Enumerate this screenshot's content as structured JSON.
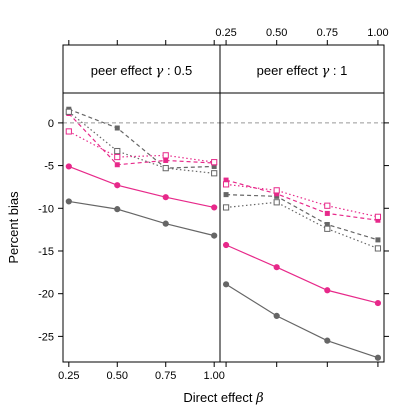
{
  "chart_data": {
    "type": "line",
    "xlabel_text": "Direct effect",
    "xlabel_symbol": "β",
    "ylabel": "Percent bias",
    "x": [
      0.25,
      0.5,
      0.75,
      1.0
    ],
    "x_tick_labels": [
      "0.25",
      "0.50",
      "0.75",
      "1.00"
    ],
    "y_ticks": [
      0,
      -5,
      -10,
      -15,
      -20,
      -25
    ],
    "y_tick_labels": [
      "0",
      "-5",
      "-10",
      "-15",
      "-20",
      "-25"
    ],
    "ylim": [
      -28,
      3.5
    ],
    "xlim": [
      0.22,
      1.03
    ],
    "reference_line": 0,
    "colors": {
      "pink": "#e7298a",
      "gray": "#666666"
    },
    "panels": [
      {
        "strip_text": "peer effect",
        "strip_symbol": "γ",
        "strip_suffix": " : 0.5",
        "series": [
          {
            "color": "gray",
            "linestyle": "solid",
            "marker": "filled-circle",
            "values": [
              -9.2,
              -10.1,
              -11.8,
              -13.2
            ]
          },
          {
            "color": "pink",
            "linestyle": "solid",
            "marker": "filled-circle",
            "values": [
              -5.1,
              -7.3,
              -8.7,
              -9.9
            ]
          },
          {
            "color": "gray",
            "linestyle": "dashed",
            "marker": "filled-square",
            "values": [
              1.6,
              -0.6,
              -5.3,
              -5.1
            ]
          },
          {
            "color": "pink",
            "linestyle": "dashed",
            "marker": "filled-square",
            "values": [
              1.1,
              -4.9,
              -4.4,
              -4.7
            ]
          },
          {
            "color": "gray",
            "linestyle": "dotted",
            "marker": "open-square",
            "values": [
              1.3,
              -3.3,
              -5.3,
              -5.9
            ]
          },
          {
            "color": "pink",
            "linestyle": "dotted",
            "marker": "open-square",
            "values": [
              -1.0,
              -4.0,
              -3.8,
              -4.6
            ]
          }
        ]
      },
      {
        "strip_text": "peer effect",
        "strip_symbol": "γ",
        "strip_suffix": " : 1",
        "series": [
          {
            "color": "gray",
            "linestyle": "solid",
            "marker": "filled-circle",
            "values": [
              -18.9,
              -22.6,
              -25.5,
              -27.5
            ]
          },
          {
            "color": "pink",
            "linestyle": "solid",
            "marker": "filled-circle",
            "values": [
              -14.3,
              -16.9,
              -19.6,
              -21.1
            ]
          },
          {
            "color": "gray",
            "linestyle": "dashed",
            "marker": "filled-square",
            "values": [
              -8.4,
              -8.6,
              -11.9,
              -13.7
            ]
          },
          {
            "color": "pink",
            "linestyle": "dashed",
            "marker": "filled-square",
            "values": [
              -6.7,
              -8.3,
              -10.6,
              -11.4
            ]
          },
          {
            "color": "gray",
            "linestyle": "dotted",
            "marker": "open-square",
            "values": [
              -9.9,
              -9.3,
              -12.4,
              -14.7
            ]
          },
          {
            "color": "pink",
            "linestyle": "dotted",
            "marker": "open-square",
            "values": [
              -7.2,
              -7.9,
              -9.7,
              -11.0
            ]
          }
        ]
      }
    ]
  }
}
